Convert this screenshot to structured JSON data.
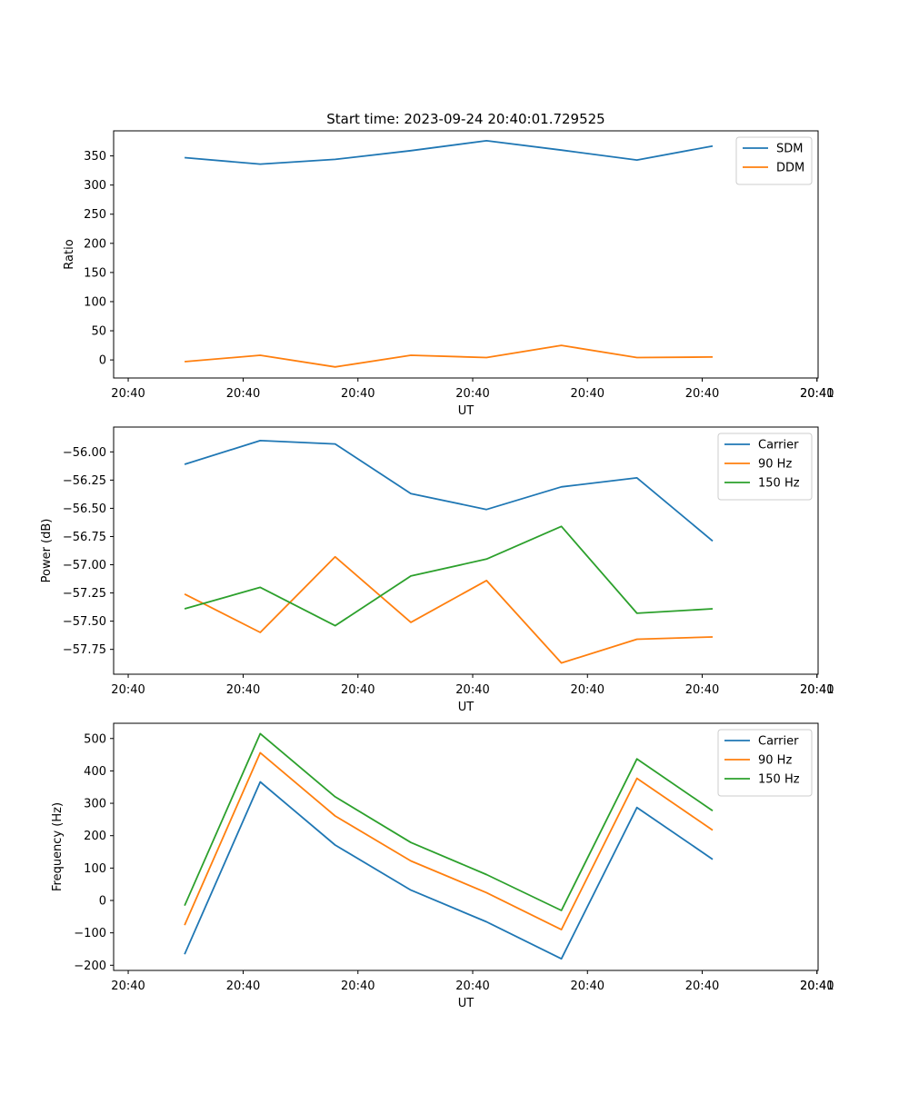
{
  "chart_data": [
    {
      "type": "line",
      "title": "Start time: 2023-09-24 20:40:01.729525",
      "xlabel": "UT",
      "ylabel": "Ratio",
      "x_tick_labels": [
        "20:40",
        "20:40",
        "20:40",
        "20:40",
        "20:40",
        "20:40",
        "20:40",
        "20:41"
      ],
      "y_ticks": [
        0,
        50,
        100,
        150,
        200,
        250,
        300,
        350
      ],
      "ylim": [
        -31,
        393
      ],
      "legend_position": "top-right",
      "series": [
        {
          "name": "SDM",
          "color": "#1f77b4",
          "values": [
            347,
            336,
            344,
            359,
            376,
            360,
            343,
            367
          ]
        },
        {
          "name": "DDM",
          "color": "#ff7f0e",
          "values": [
            -3,
            8,
            -12,
            8,
            4,
            25,
            4,
            5
          ]
        }
      ]
    },
    {
      "type": "line",
      "title": "",
      "xlabel": "UT",
      "ylabel": "Power (dB)",
      "x_tick_labels": [
        "20:40",
        "20:40",
        "20:40",
        "20:40",
        "20:40",
        "20:40",
        "20:40",
        "20:41"
      ],
      "y_ticks": [
        -56.0,
        -56.25,
        -56.5,
        -56.75,
        -57.0,
        -57.25,
        -57.5,
        -57.75
      ],
      "y_tick_labels": [
        "−56.00",
        "−56.25",
        "−56.50",
        "−56.75",
        "−57.00",
        "−57.25",
        "−57.50",
        "−57.75"
      ],
      "ylim": [
        -57.97,
        -55.78
      ],
      "legend_position": "top-right",
      "series": [
        {
          "name": "Carrier",
          "color": "#1f77b4",
          "values": [
            -56.11,
            -55.9,
            -55.93,
            -56.37,
            -56.51,
            -56.31,
            -56.23,
            -56.79
          ]
        },
        {
          "name": "90 Hz",
          "color": "#ff7f0e",
          "values": [
            -57.26,
            -57.6,
            -56.93,
            -57.51,
            -57.14,
            -57.87,
            -57.66,
            -57.64
          ]
        },
        {
          "name": "150 Hz",
          "color": "#2ca02c",
          "values": [
            -57.39,
            -57.2,
            -57.54,
            -57.1,
            -56.95,
            -56.66,
            -57.43,
            -57.39
          ]
        }
      ]
    },
    {
      "type": "line",
      "title": "",
      "xlabel": "UT",
      "ylabel": "Frequency (Hz)",
      "x_tick_labels": [
        "20:40",
        "20:40",
        "20:40",
        "20:40",
        "20:40",
        "20:40",
        "20:40",
        "20:41"
      ],
      "y_ticks": [
        -200,
        -100,
        0,
        100,
        200,
        300,
        400,
        500
      ],
      "y_tick_labels": [
        "−200",
        "−100",
        "0",
        "100",
        "200",
        "300",
        "400",
        "500"
      ],
      "ylim": [
        -216,
        547
      ],
      "legend_position": "top-right",
      "series": [
        {
          "name": "Carrier",
          "color": "#1f77b4",
          "values": [
            -166,
            366,
            171,
            32,
            -66,
            -180,
            287,
            127
          ]
        },
        {
          "name": "90 Hz",
          "color": "#ff7f0e",
          "values": [
            -76,
            456,
            261,
            122,
            24,
            -90,
            377,
            217
          ]
        },
        {
          "name": "150 Hz",
          "color": "#2ca02c",
          "values": [
            -16,
            515,
            320,
            179,
            80,
            -31,
            437,
            277
          ]
        }
      ]
    }
  ]
}
